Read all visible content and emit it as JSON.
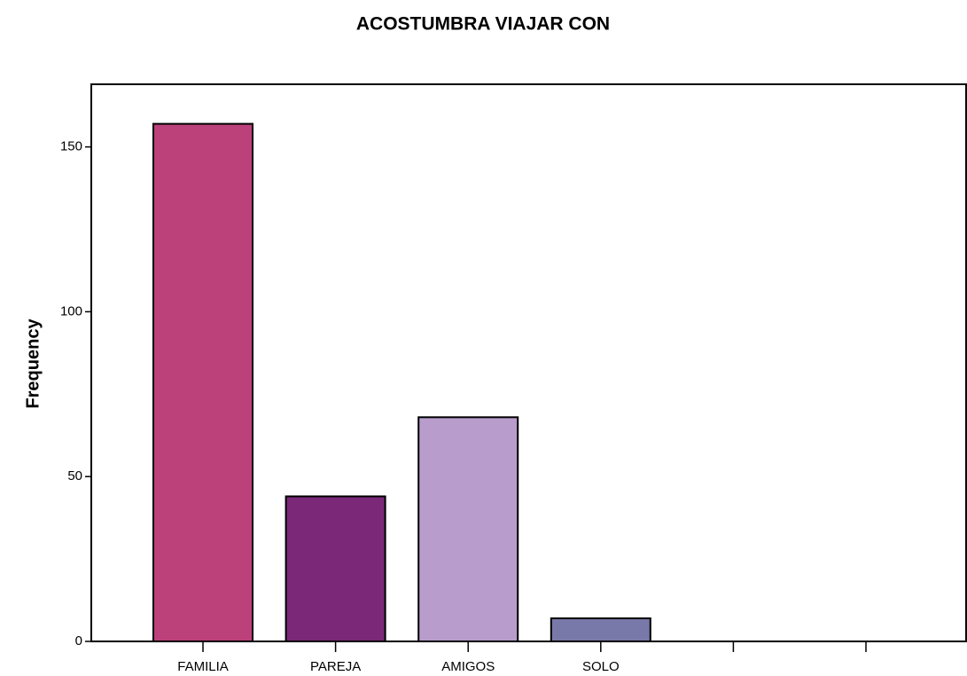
{
  "chart_data": {
    "type": "bar",
    "title": "ACOSTUMBRA VIAJAR CON",
    "ylabel": "Frequency",
    "categories": [
      "FAMILIA",
      "PAREJA",
      "AMIGOS",
      "SOLO",
      null,
      null
    ],
    "values": [
      157,
      44,
      68,
      7,
      null,
      null
    ],
    "colors": [
      "#bc417b",
      "#7b2879",
      "#b89ccb",
      "#7979a9",
      null,
      null
    ],
    "ylim": [
      0,
      169
    ],
    "yticks": [
      0,
      50,
      100,
      150
    ],
    "grid": false
  }
}
